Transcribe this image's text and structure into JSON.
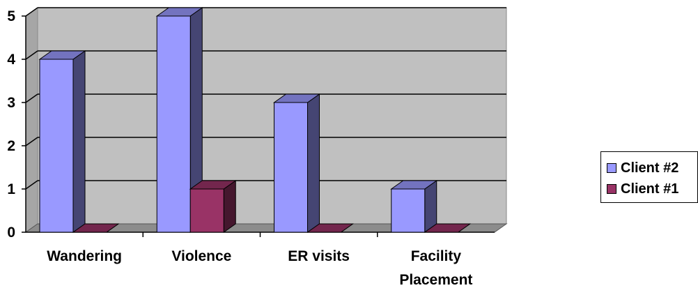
{
  "chart_data": {
    "type": "bar",
    "style": "3d-clustered-column",
    "categories": [
      "Wandering",
      "Violence",
      "ER visits",
      "Facility Placement"
    ],
    "category_lines": [
      [
        "Wandering"
      ],
      [
        "Violence"
      ],
      [
        "ER visits"
      ],
      [
        "Facility",
        "Placement"
      ]
    ],
    "series": [
      {
        "name": "Client #2",
        "values": [
          4,
          5,
          3,
          1
        ],
        "color": "#9999ff"
      },
      {
        "name": "Client #1",
        "values": [
          0,
          1,
          0,
          0
        ],
        "color": "#993366"
      }
    ],
    "ylim": [
      0,
      5
    ],
    "yticks": [
      0,
      1,
      2,
      3,
      4,
      5
    ],
    "grid": true,
    "wall_color": "#c0c0c0",
    "legend_position": "right"
  }
}
